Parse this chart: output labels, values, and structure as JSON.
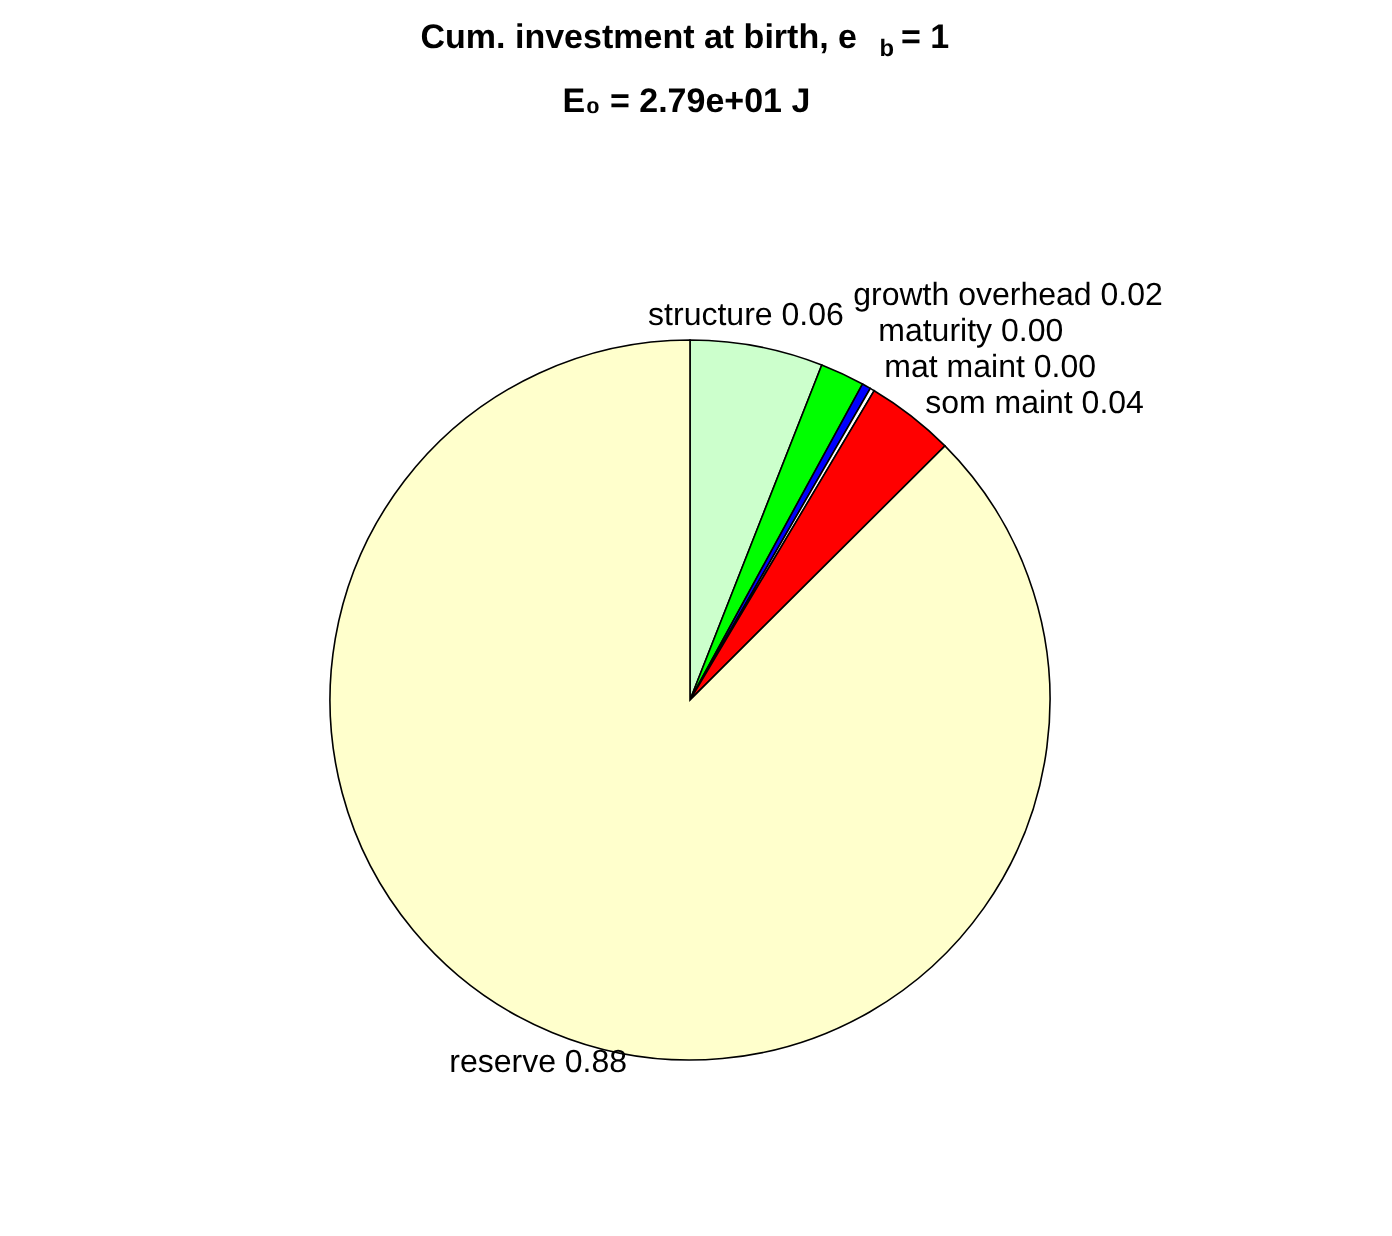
{
  "chart_data": {
    "type": "pie",
    "title": "Cum. investment at birth, e$_{b}$ = 1",
    "subtitle": "E₀ = 2.79e+01 J",
    "categories": [
      "structure",
      "growth overhead",
      "maturity",
      "mat maint",
      "som maint",
      "reserve"
    ],
    "values": [
      0.06,
      0.02,
      0.004,
      0.002,
      0.04,
      0.88
    ],
    "value_labels": [
      "0.06",
      "0.02",
      "0.00",
      "0.00",
      "0.04",
      "0.88"
    ],
    "colors": [
      "#ccffcc",
      "#00ff00",
      "#0000ff",
      "#ffffff",
      "#ff0000",
      "#ffffcc"
    ],
    "legend": false
  }
}
